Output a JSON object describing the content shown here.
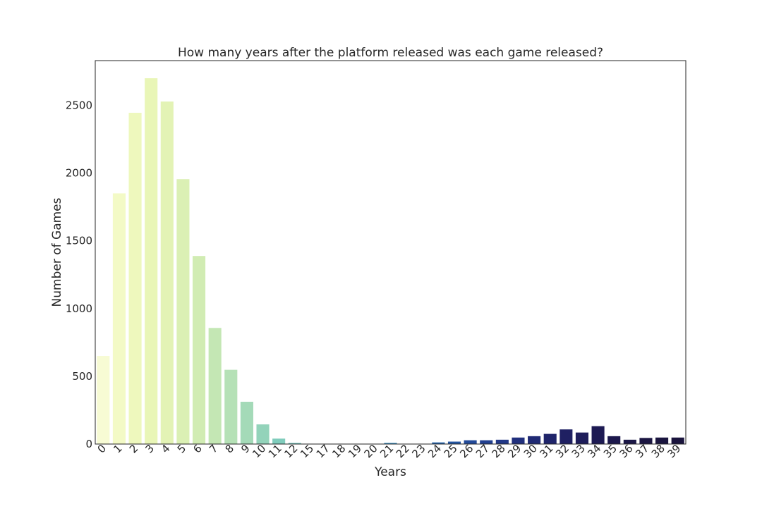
{
  "chart_data": {
    "type": "bar",
    "title": "How many years after the platform released was each game released?",
    "xlabel": "Years",
    "ylabel": "Number of Games",
    "categories": [
      "0",
      "1",
      "2",
      "3",
      "4",
      "5",
      "6",
      "7",
      "8",
      "9",
      "10",
      "11",
      "12",
      "15",
      "17",
      "18",
      "19",
      "20",
      "21",
      "22",
      "23",
      "24",
      "25",
      "26",
      "27",
      "28",
      "29",
      "30",
      "31",
      "32",
      "33",
      "34",
      "35",
      "36",
      "37",
      "38",
      "39"
    ],
    "values": [
      650,
      1850,
      2445,
      2700,
      2528,
      1955,
      1388,
      857,
      548,
      312,
      145,
      40,
      8,
      2,
      2,
      2,
      2,
      2,
      8,
      2,
      2,
      12,
      18,
      28,
      28,
      32,
      48,
      58,
      75,
      108,
      85,
      132,
      58,
      32,
      45,
      48,
      48
    ],
    "ylim": [
      0,
      2830
    ],
    "yticks": [
      0,
      500,
      1000,
      1500,
      2000,
      2500
    ],
    "grid": false,
    "legend": "none",
    "palette": "YlGnBu",
    "colors": [
      "#f7fbd4",
      "#f3fac6",
      "#eef8bd",
      "#e9f6b7",
      "#e3f3b5",
      "#dbf0b4",
      "#d1ecb3",
      "#c4e7b4",
      "#b5e1b6",
      "#a4dab8",
      "#93d3ba",
      "#80ccbc",
      "#6ec4be",
      "#5dbcc1",
      "#4db3c3",
      "#40a8c3",
      "#369cc1",
      "#2e90be",
      "#2984b9",
      "#2678b3",
      "#246cad",
      "#2360a7",
      "#2355a0",
      "#234a99",
      "#224090",
      "#223887",
      "#21307d",
      "#202a74",
      "#1f246a",
      "#1f2062",
      "#1e1d5a",
      "#1d1a53",
      "#1c184c",
      "#1b1746",
      "#1b1642",
      "#1a153f",
      "#1a143d"
    ]
  }
}
